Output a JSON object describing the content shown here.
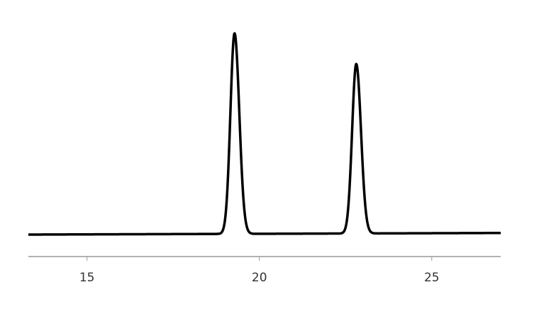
{
  "chart_data": {
    "type": "line",
    "title": "",
    "xlabel": "",
    "ylabel": "",
    "xlim": [
      13.3,
      27.0
    ],
    "ylim": [
      0,
      1.0
    ],
    "x_ticks": [
      15,
      20,
      25
    ],
    "x_tick_labels": [
      "15",
      "20",
      "25"
    ],
    "y_axis_shown": false,
    "grid": false,
    "legend": "none",
    "line_color": "#000000",
    "axis_color": "#999999",
    "baseline": {
      "start": 0.0,
      "end": 0.008
    },
    "series": [
      {
        "peaks": [
          {
            "x": 19.28,
            "height": 1.0,
            "sigma": 0.12
          },
          {
            "x": 22.81,
            "height": 0.845,
            "sigma": 0.12
          }
        ]
      }
    ]
  }
}
